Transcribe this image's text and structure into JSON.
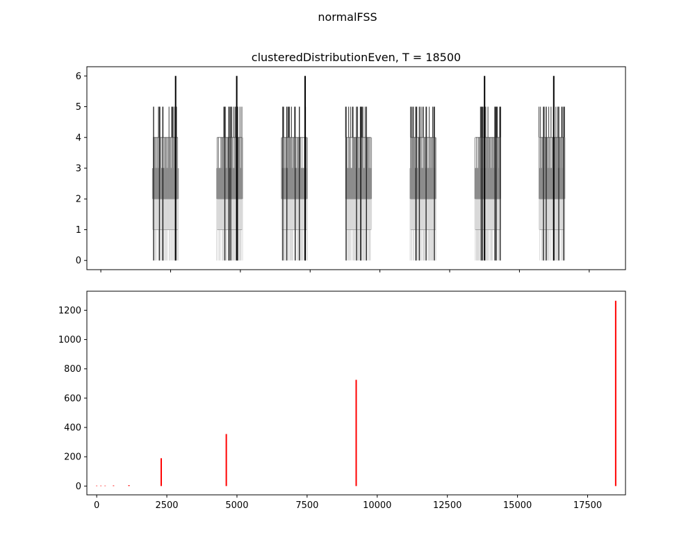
{
  "figure": {
    "suptitle": "normalFSS"
  },
  "chart_data": [
    {
      "type": "bar",
      "title": "clusteredDistributionEven, T = 18500",
      "xlabel": "",
      "ylabel": "",
      "xlim": [
        -500,
        18800
      ],
      "ylim": [
        -0.3,
        6.3
      ],
      "yticks": [
        0,
        1,
        2,
        3,
        4,
        5,
        6
      ],
      "xticks_shown": [
        0,
        2500,
        5000,
        7500,
        10000,
        12500,
        15000,
        17500
      ],
      "xtick_labels_visible": false,
      "grid": false,
      "description_note": "",
      "clusters": [
        {
          "start": 1850,
          "end": 2780,
          "peak_x": 2680,
          "peak": 6
        },
        {
          "start": 4150,
          "end": 5080,
          "peak_x": 4870,
          "peak": 6
        },
        {
          "start": 6470,
          "end": 7400,
          "peak_x": 7320,
          "peak": 6
        },
        {
          "start": 8770,
          "end": 9700,
          "peak_x": null,
          "peak": 5
        },
        {
          "start": 11080,
          "end": 12010,
          "peak_x": null,
          "peak": 5
        },
        {
          "start": 13400,
          "end": 14330,
          "peak_x": 13750,
          "peak": 6
        },
        {
          "start": 15700,
          "end": 16630,
          "peak_x": 16230,
          "peak": 6
        }
      ],
      "colors": {
        "level_low": "#d9d9d9",
        "level_mid": "#8c8c8c",
        "level_high": "#3a3a3a",
        "peak": "#000000"
      }
    },
    {
      "type": "bar",
      "title": "",
      "xlabel": "",
      "ylabel": "",
      "xlim": [
        -350,
        18850
      ],
      "ylim": [
        -60,
        1330
      ],
      "yticks": [
        0,
        200,
        400,
        600,
        800,
        1000,
        1200
      ],
      "xticks": [
        0,
        2500,
        5000,
        7500,
        10000,
        12500,
        15000,
        17500
      ],
      "grid": false,
      "color": "#ff0000",
      "x": [
        0,
        150,
        300,
        600,
        1150,
        2300,
        4620,
        9250,
        18500
      ],
      "values": [
        3,
        3,
        3,
        4,
        6,
        190,
        355,
        725,
        1265
      ]
    }
  ]
}
